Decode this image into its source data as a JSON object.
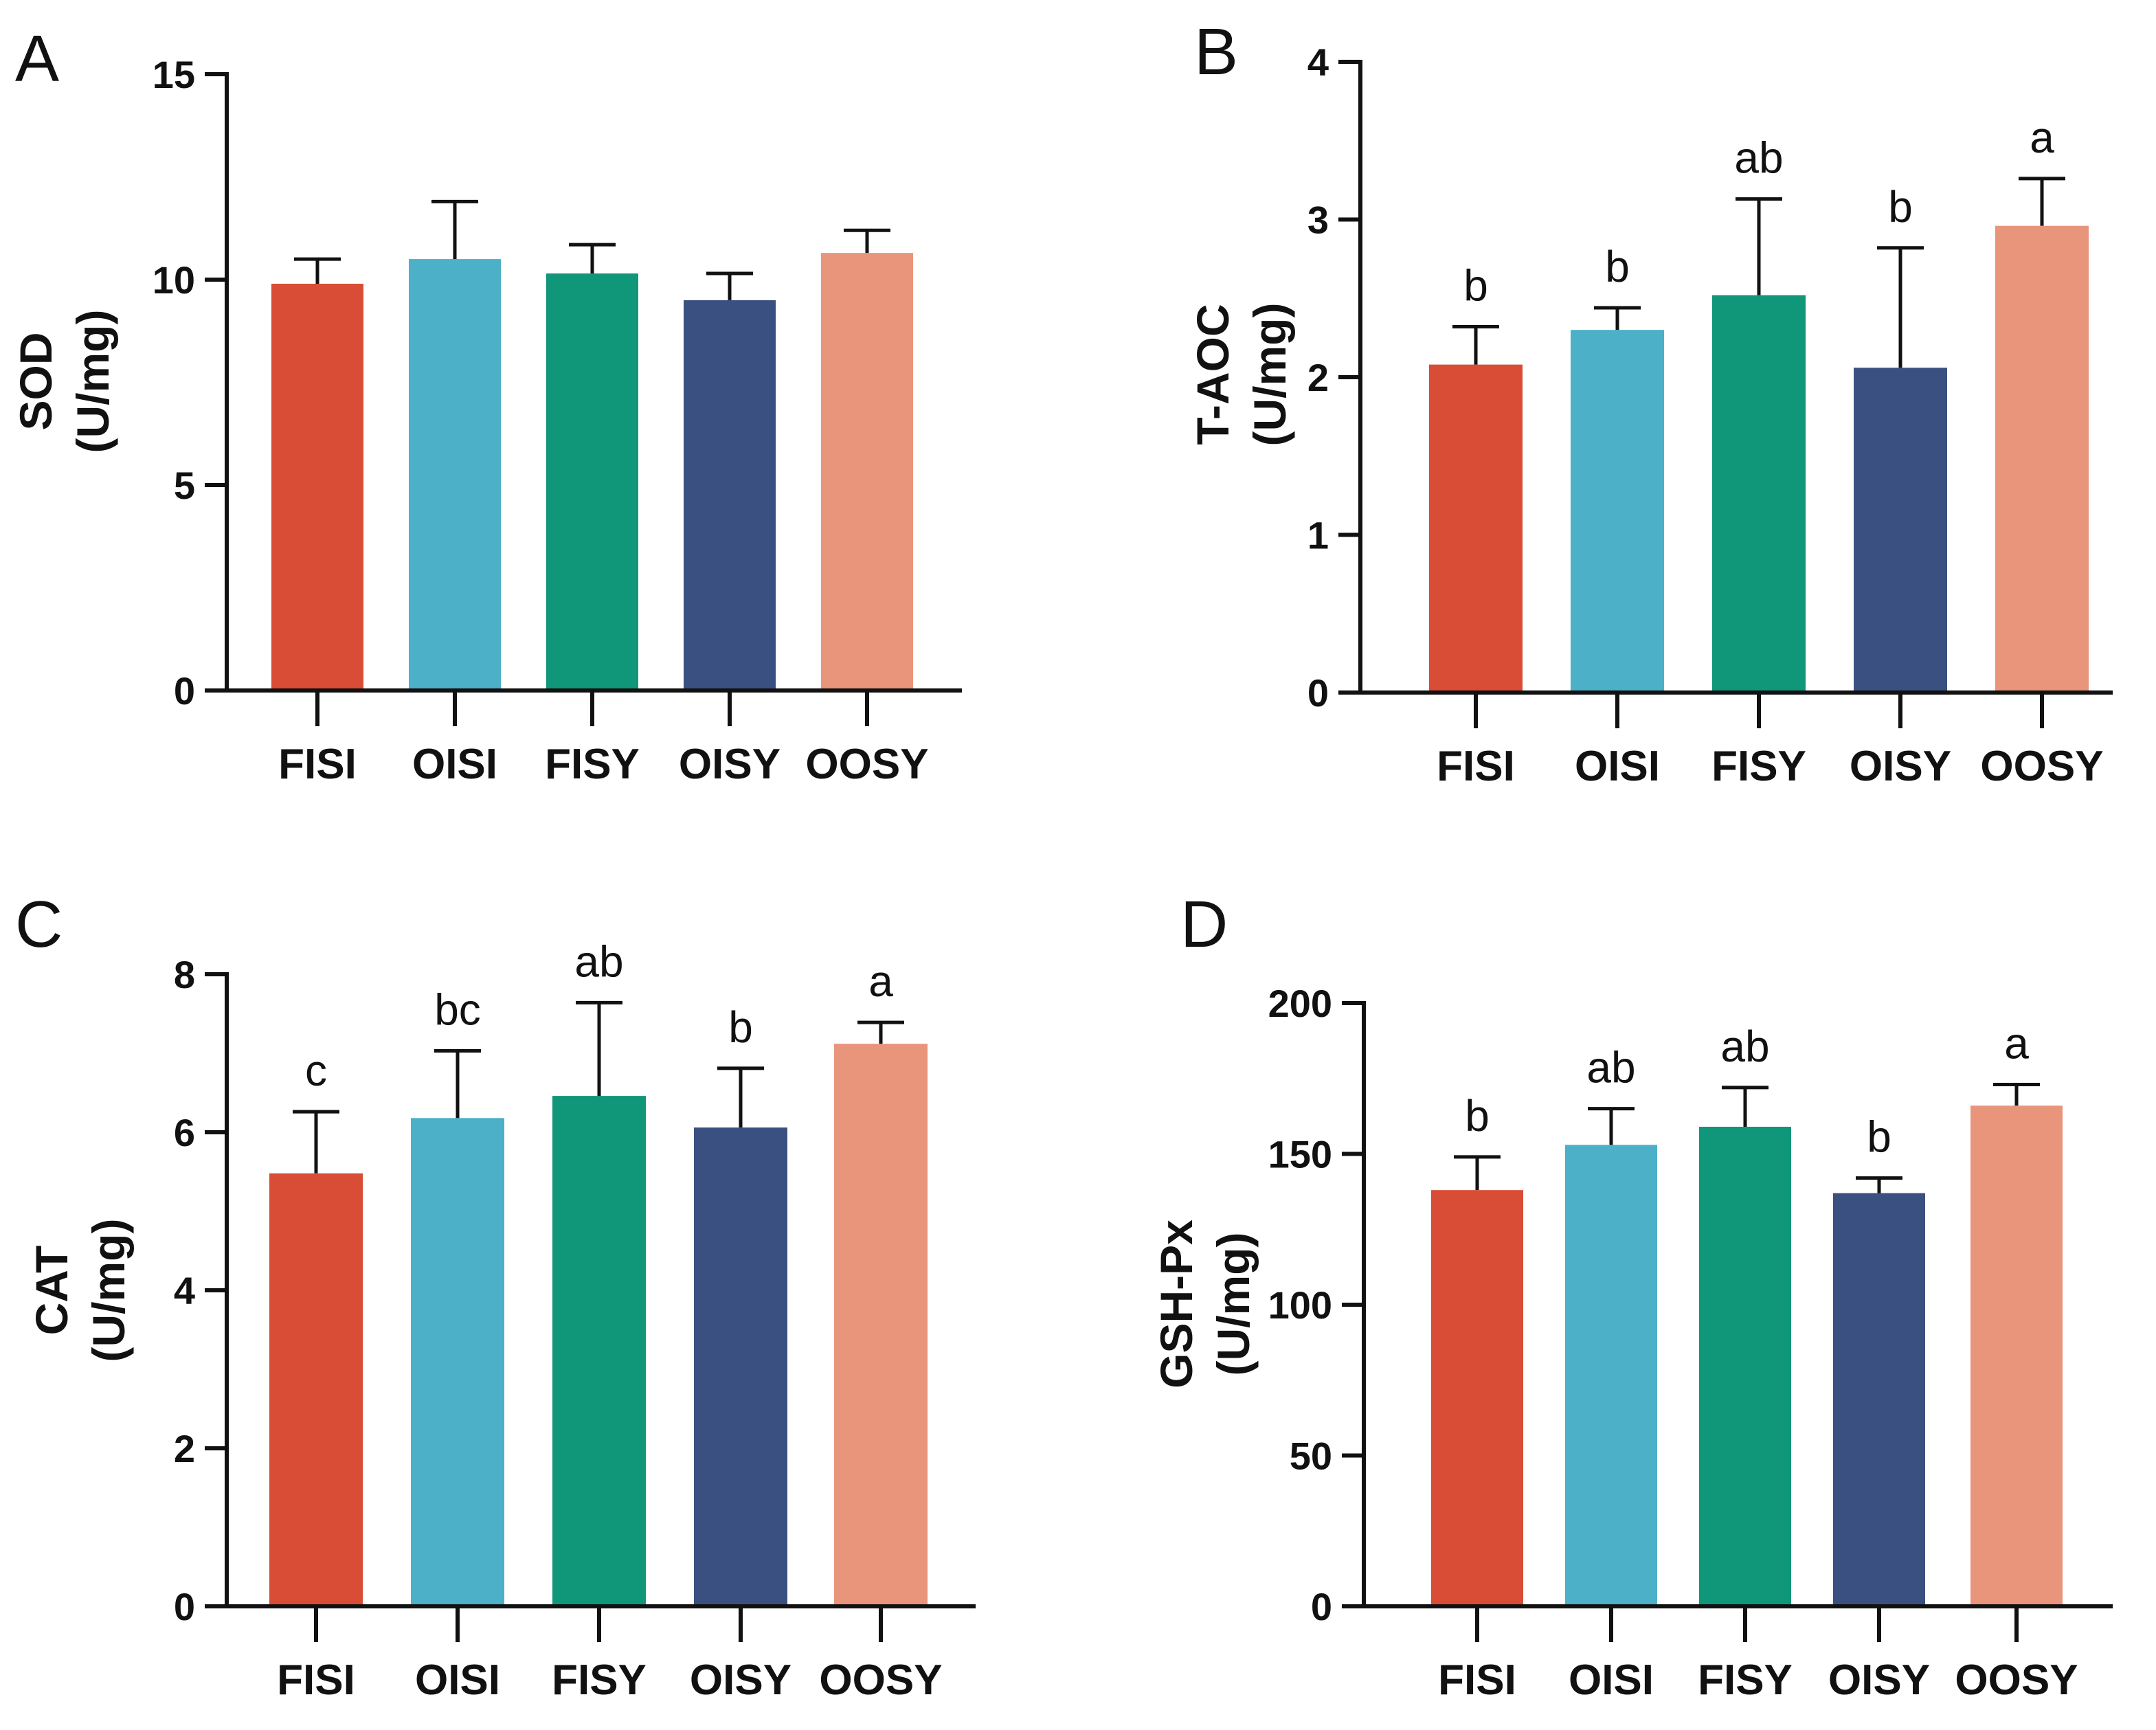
{
  "colors": {
    "FISI": "#d94c35",
    "OISI": "#4bb0c8",
    "FISY": "#109679",
    "OISY": "#3a5080",
    "OOSY": "#e8957b",
    "axis": "#111111"
  },
  "chart_data": [
    {
      "type": "bar",
      "panel": "A",
      "ylabel_line1": "SOD",
      "ylabel_line2": "(U/mg)",
      "categories": [
        "FISI",
        "OISI",
        "FISY",
        "OISY",
        "OOSY"
      ],
      "values": [
        9.9,
        10.5,
        10.15,
        9.5,
        10.65
      ],
      "errors": [
        0.6,
        1.4,
        0.7,
        0.65,
        0.55
      ],
      "significance": [
        "",
        "",
        "",
        "",
        ""
      ],
      "ylim": [
        0,
        15
      ],
      "yticks": [
        0,
        5,
        10,
        15
      ],
      "ytick_labels": [
        "0",
        "5",
        "10",
        "15"
      ]
    },
    {
      "type": "bar",
      "panel": "B",
      "ylabel_line1": "T-AOC",
      "ylabel_line2": "(U/mg)",
      "categories": [
        "FISI",
        "OISI",
        "FISY",
        "OISY",
        "OOSY"
      ],
      "values": [
        2.08,
        2.3,
        2.52,
        2.06,
        2.96
      ],
      "errors": [
        0.24,
        0.14,
        0.61,
        0.76,
        0.3
      ],
      "significance": [
        "b",
        "b",
        "ab",
        "b",
        "a"
      ],
      "ylim": [
        0,
        4
      ],
      "yticks": [
        0,
        1,
        2,
        3,
        4
      ],
      "ytick_labels": [
        "0",
        "1",
        "2",
        "3",
        "4"
      ]
    },
    {
      "type": "bar",
      "panel": "C",
      "ylabel_line1": "CAT",
      "ylabel_line2": "(U/mg)",
      "categories": [
        "FISI",
        "OISI",
        "FISY",
        "OISY",
        "OOSY"
      ],
      "values": [
        5.48,
        6.18,
        6.46,
        6.06,
        7.12
      ],
      "errors": [
        0.78,
        0.85,
        1.18,
        0.75,
        0.27
      ],
      "significance": [
        "c",
        "bc",
        "ab",
        "b",
        "a"
      ],
      "ylim": [
        0,
        8
      ],
      "yticks": [
        0,
        2,
        4,
        6,
        8
      ],
      "ytick_labels": [
        "0",
        "2",
        "4",
        "6",
        "8"
      ]
    },
    {
      "type": "bar",
      "panel": "D",
      "ylabel_line1": "GSH-Px",
      "ylabel_line2": "(U/mg)",
      "categories": [
        "FISI",
        "OISI",
        "FISY",
        "OISY",
        "OOSY"
      ],
      "values": [
        138,
        153,
        159,
        137,
        166
      ],
      "errors": [
        11,
        12,
        13,
        5,
        7
      ],
      "significance": [
        "b",
        "ab",
        "ab",
        "b",
        "a"
      ],
      "ylim": [
        0,
        200
      ],
      "yticks": [
        0,
        50,
        100,
        150,
        200
      ],
      "ytick_labels": [
        "0",
        "50",
        "100",
        "150",
        "200"
      ]
    }
  ]
}
